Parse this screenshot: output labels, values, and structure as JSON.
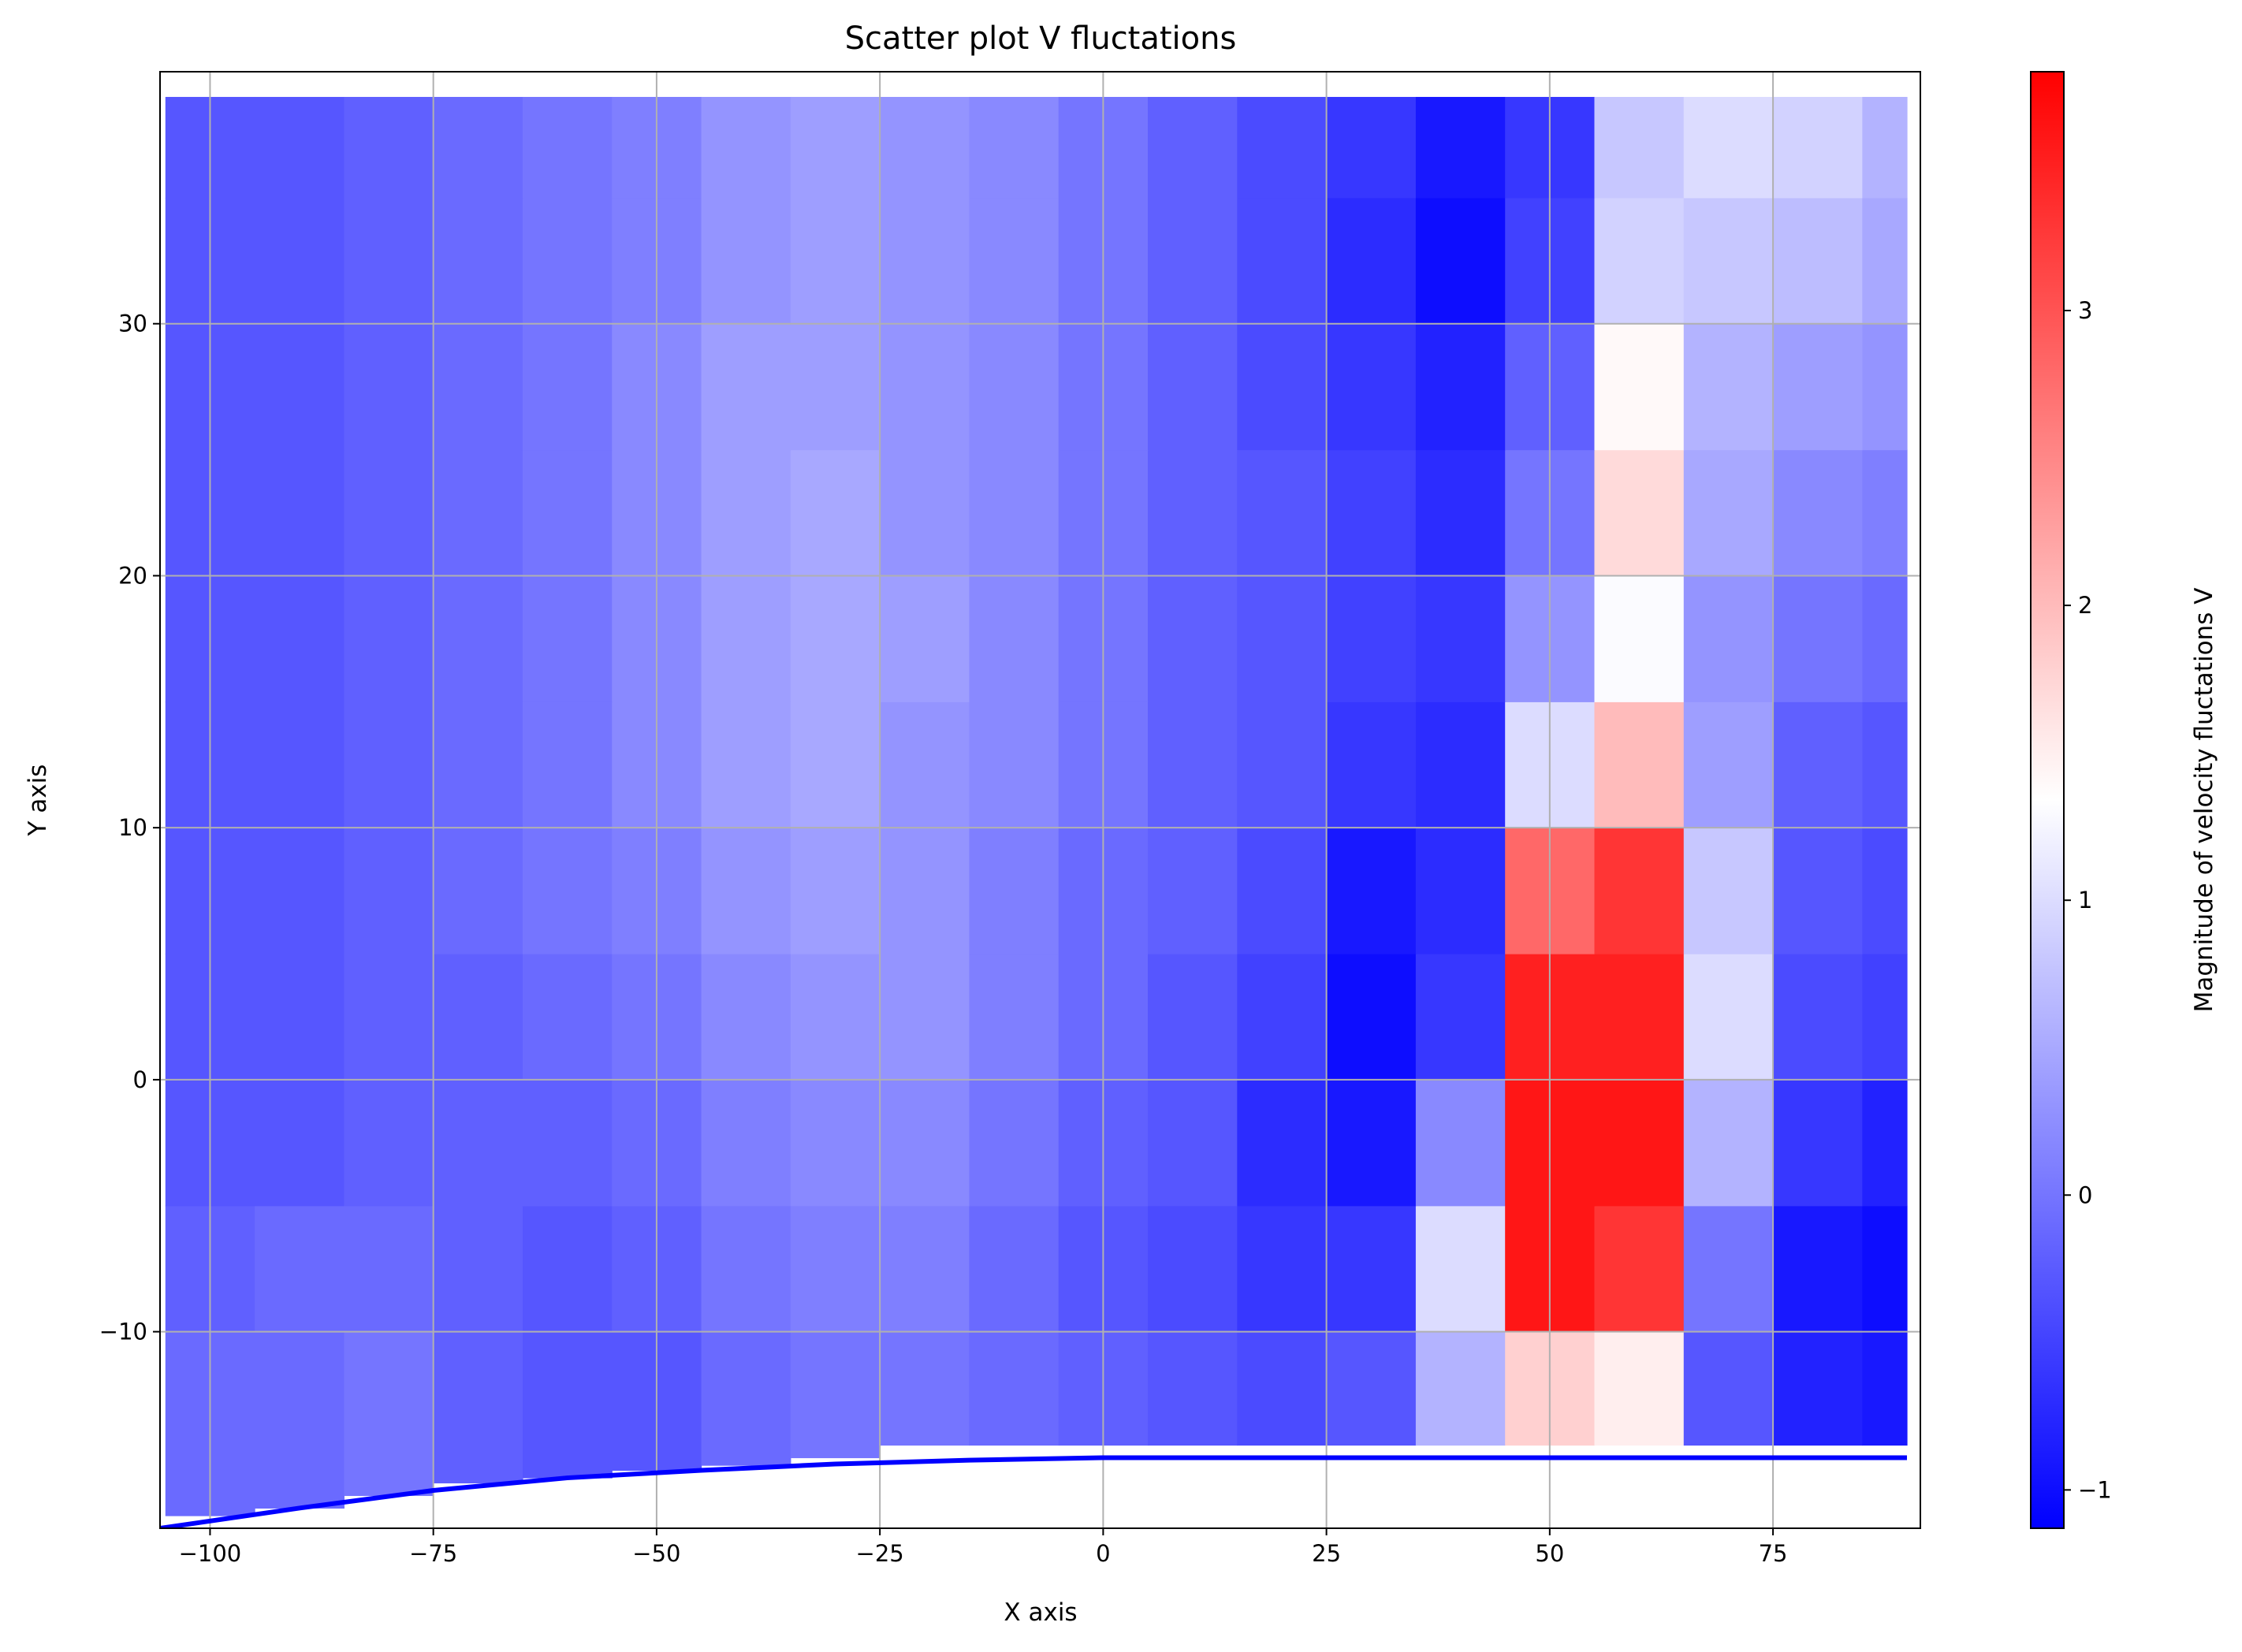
{
  "chart_data": {
    "type": "heatmap",
    "title": "Scatter plot V fluctations",
    "x_label": "X axis",
    "y_label": "Y axis",
    "colorbar_label": "Magnitude of velocity fluctations V",
    "x": [
      -100,
      -90,
      -80,
      -70,
      -60,
      -50,
      -40,
      -30,
      -20,
      -10,
      0,
      10,
      20,
      30,
      40,
      50,
      60,
      70,
      80,
      90
    ],
    "y": [
      -12.5,
      -7.5,
      -2.5,
      2.5,
      7.5,
      12.5,
      17.5,
      22.5,
      27.5,
      32.5,
      37.5
    ],
    "z": [
      [
        -0.1,
        -0.1,
        0,
        -0.2,
        -0.3,
        -0.3,
        -0.1,
        0,
        0,
        -0.1,
        -0.2,
        -0.3,
        -0.4,
        -0.3,
        0.6,
        1.8,
        1.5,
        -0.3,
        -0.8,
        -0.9
      ],
      [
        -0.2,
        -0.1,
        -0.1,
        -0.2,
        -0.3,
        -0.2,
        0,
        0.1,
        0.1,
        -0.1,
        -0.3,
        -0.4,
        -0.6,
        -0.6,
        1.0,
        3.6,
        3.3,
        0,
        -0.9,
        -1.0
      ],
      [
        -0.3,
        -0.3,
        -0.2,
        -0.2,
        -0.2,
        -0.1,
        0.1,
        0.2,
        0.2,
        0,
        -0.2,
        -0.3,
        -0.7,
        -0.9,
        0.2,
        3.6,
        3.6,
        0.6,
        -0.6,
        -0.8
      ],
      [
        -0.3,
        -0.3,
        -0.2,
        -0.2,
        -0.1,
        0,
        0.2,
        0.3,
        0.3,
        0.1,
        -0.1,
        -0.3,
        -0.5,
        -1.0,
        -0.6,
        3.5,
        3.5,
        1.0,
        -0.4,
        -0.5
      ],
      [
        -0.3,
        -0.3,
        -0.2,
        -0.1,
        0,
        0.1,
        0.3,
        0.4,
        0.3,
        0.1,
        -0.1,
        -0.2,
        -0.4,
        -0.9,
        -0.7,
        2.8,
        3.3,
        0.8,
        -0.3,
        -0.4
      ],
      [
        -0.3,
        -0.3,
        -0.2,
        -0.1,
        0,
        0.2,
        0.4,
        0.5,
        0.3,
        0.2,
        0,
        -0.2,
        -0.3,
        -0.6,
        -0.7,
        1.0,
        2.0,
        0.4,
        -0.2,
        -0.3
      ],
      [
        -0.3,
        -0.3,
        -0.2,
        -0.1,
        0,
        0.2,
        0.4,
        0.5,
        0.4,
        0.2,
        0,
        -0.2,
        -0.3,
        -0.5,
        -0.6,
        0.3,
        1.3,
        0.3,
        0,
        -0.1
      ],
      [
        -0.3,
        -0.3,
        -0.2,
        -0.1,
        0,
        0.2,
        0.4,
        0.5,
        0.3,
        0.2,
        0,
        -0.2,
        -0.3,
        -0.5,
        -0.7,
        0,
        1.7,
        0.5,
        0.2,
        0.1
      ],
      [
        -0.3,
        -0.3,
        -0.2,
        -0.1,
        0,
        0.2,
        0.4,
        0.4,
        0.3,
        0.2,
        0,
        -0.2,
        -0.4,
        -0.6,
        -0.8,
        -0.2,
        1.4,
        0.6,
        0.4,
        0.3
      ],
      [
        -0.3,
        -0.3,
        -0.2,
        -0.1,
        0,
        0.1,
        0.3,
        0.4,
        0.3,
        0.2,
        0,
        -0.2,
        -0.4,
        -0.7,
        -1.0,
        -0.5,
        0.9,
        0.8,
        0.7,
        0.5
      ],
      [
        -0.3,
        -0.3,
        -0.2,
        -0.1,
        0,
        0.1,
        0.3,
        0.4,
        0.3,
        0.2,
        0,
        -0.2,
        -0.4,
        -0.6,
        -0.9,
        -0.6,
        0.8,
        1.0,
        0.9,
        0.6
      ]
    ],
    "y_top": 39,
    "column_bottom": [
      -17.3,
      -17,
      -16.5,
      -16,
      -15.8,
      -15.5,
      -15.3,
      -15,
      -14.5,
      -14.5,
      -14.5,
      -14.5,
      -14.5,
      -14.5,
      -14.5,
      -14.5,
      -14.5,
      -14.5,
      -14.5,
      -14.5
    ],
    "colormap": [
      "#0000ff",
      "#ffffff",
      "#ff0000"
    ],
    "clim": [
      -1.13,
      3.81
    ],
    "colorbar_ticks": [
      {
        "value": -1,
        "label": "−1"
      },
      0,
      1,
      2,
      3
    ],
    "line": {
      "color": "#0000ff",
      "x": [
        -105.6,
        -90,
        -75,
        -60,
        -45,
        -30,
        -15,
        0,
        15,
        30,
        45,
        60,
        75,
        90
      ],
      "y": [
        -17.8,
        -17.0,
        -16.3,
        -15.8,
        -15.5,
        -15.25,
        -15.1,
        -15.0,
        -15,
        -15,
        -15,
        -15,
        -15,
        -15
      ]
    },
    "xlim": [
      -105.6,
      91.5
    ],
    "ylim": [
      -17.8,
      40
    ],
    "xticks": [
      {
        "value": -100,
        "label": "−100"
      },
      {
        "value": -75,
        "label": "−75"
      },
      {
        "value": -50,
        "label": "−50"
      },
      {
        "value": -25,
        "label": "−25"
      },
      0,
      25,
      50,
      75
    ],
    "yticks": [
      {
        "value": -10,
        "label": "−10"
      },
      0,
      10,
      20,
      30
    ],
    "grid": true
  }
}
